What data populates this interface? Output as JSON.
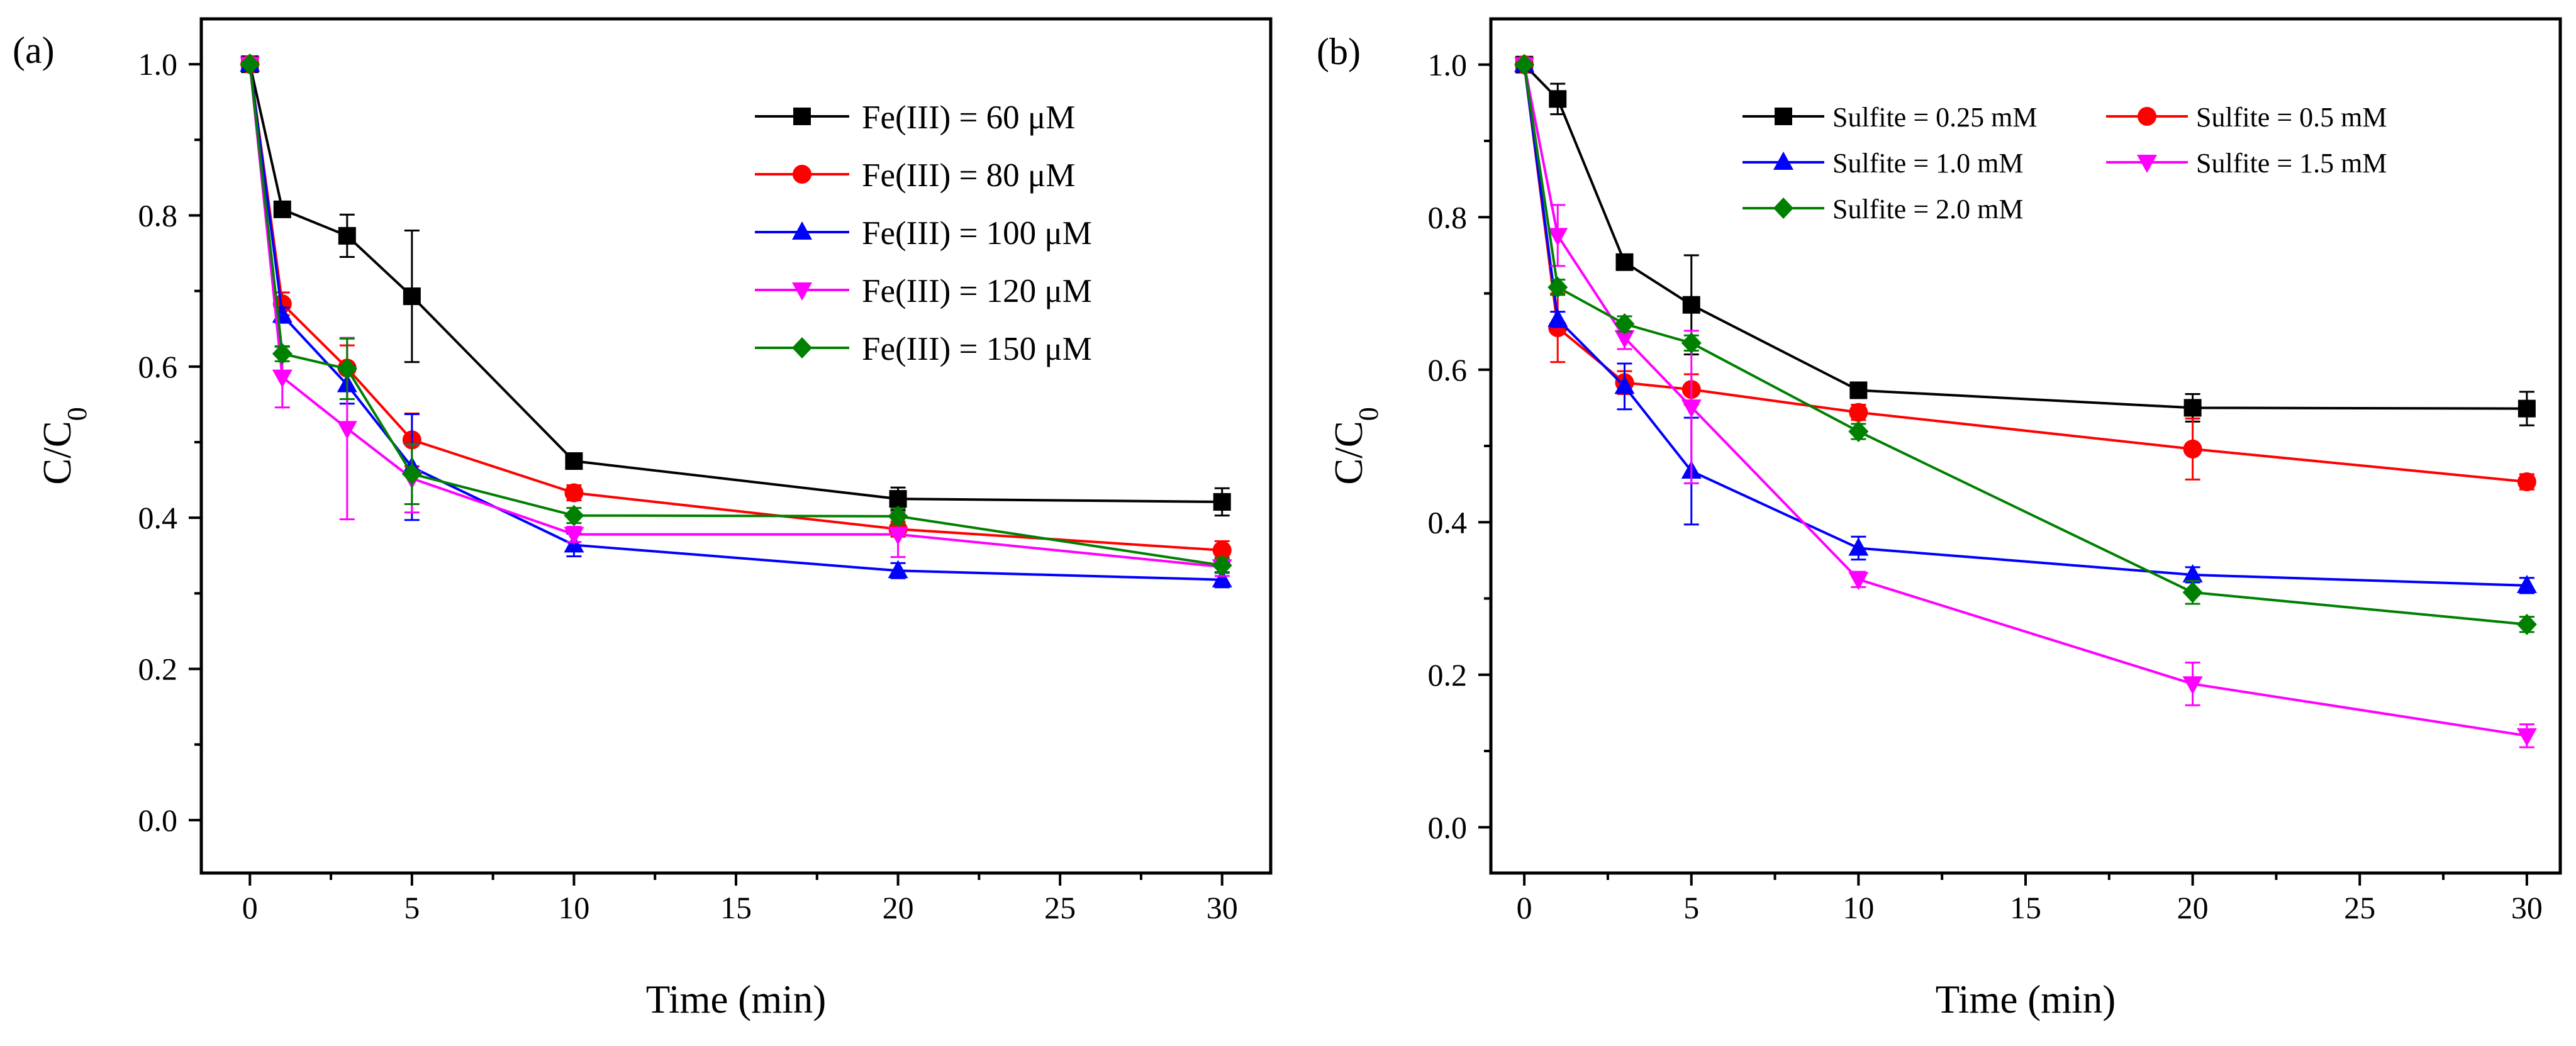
{
  "chart_data": [
    {
      "type": "line",
      "panel_label": "(a)",
      "xlabel": "Time (min)",
      "ylabel_main": "C/C",
      "ylabel_sub": "0",
      "xlim": [
        -1.5,
        31.5
      ],
      "ylim": [
        -0.07,
        1.06
      ],
      "xticks": [
        "0",
        "5",
        "10",
        "15",
        "20",
        "25",
        "30"
      ],
      "yticks": [
        "0.0",
        "0.2",
        "0.4",
        "0.6",
        "0.8",
        "1.0"
      ],
      "legend_position": "top-right",
      "x": [
        0,
        1,
        3,
        5,
        10,
        20,
        30
      ],
      "series": [
        {
          "name": "Fe(III) = 60 μM",
          "color": "#000000",
          "marker": "square",
          "values": [
            1.0,
            0.808,
            0.773,
            0.693,
            0.475,
            0.425,
            0.421
          ],
          "errors": [
            0,
            0.008,
            0.028,
            0.087,
            0.01,
            0.015,
            0.018
          ]
        },
        {
          "name": "Fe(III) = 80 μM",
          "color": "#ff0000",
          "marker": "circle",
          "values": [
            1.0,
            0.683,
            0.598,
            0.503,
            0.433,
            0.385,
            0.357
          ],
          "errors": [
            0,
            0.015,
            0.03,
            0.035,
            0.01,
            0.01,
            0.012
          ]
        },
        {
          "name": "Fe(III) = 100 μM",
          "color": "#0000ff",
          "marker": "triangle-up",
          "values": [
            1.0,
            0.668,
            0.576,
            0.467,
            0.364,
            0.33,
            0.318
          ],
          "errors": [
            0,
            0.01,
            0.025,
            0.07,
            0.015,
            0.01,
            0.01
          ]
        },
        {
          "name": "Fe(III) = 120 μM",
          "color": "#ff00ff",
          "marker": "triangle-down",
          "values": [
            1.0,
            0.586,
            0.518,
            0.452,
            0.378,
            0.378,
            0.335
          ],
          "errors": [
            0,
            0.04,
            0.12,
            0.045,
            0.01,
            0.03,
            0.012
          ]
        },
        {
          "name": "Fe(III) = 150 μM",
          "color": "#008000",
          "marker": "diamond",
          "values": [
            1.0,
            0.617,
            0.597,
            0.458,
            0.403,
            0.402,
            0.337
          ],
          "errors": [
            0,
            0.01,
            0.04,
            0.04,
            0.01,
            0.01,
            0.01
          ]
        }
      ]
    },
    {
      "type": "line",
      "panel_label": "(b)",
      "xlabel": "Time (min)",
      "ylabel_main": "C/C",
      "ylabel_sub": "0",
      "xlim": [
        -1.0,
        31.0
      ],
      "ylim": [
        -0.06,
        1.06
      ],
      "xticks": [
        "0",
        "5",
        "10",
        "15",
        "20",
        "25",
        "30"
      ],
      "yticks": [
        "0.0",
        "0.2",
        "0.4",
        "0.6",
        "0.8",
        "1.0"
      ],
      "legend_position": "top-right",
      "x": [
        0,
        1,
        3,
        5,
        10,
        20,
        30
      ],
      "series": [
        {
          "name": "Sulfite = 0.25 mM",
          "color": "#000000",
          "marker": "square",
          "values": [
            1.0,
            0.955,
            0.741,
            0.685,
            0.573,
            0.55,
            0.549
          ],
          "errors": [
            0,
            0.02,
            0.01,
            0.065,
            0.01,
            0.018,
            0.022
          ]
        },
        {
          "name": "Sulfite = 0.5 mM",
          "color": "#ff0000",
          "marker": "circle",
          "values": [
            1.0,
            0.655,
            0.583,
            0.574,
            0.544,
            0.496,
            0.453
          ],
          "errors": [
            0,
            0.045,
            0.015,
            0.02,
            0.01,
            0.04,
            0.01
          ]
        },
        {
          "name": "Sulfite = 1.0 mM",
          "color": "#0000ff",
          "marker": "triangle-up",
          "values": [
            1.0,
            0.666,
            0.578,
            0.467,
            0.366,
            0.331,
            0.317
          ],
          "errors": [
            0,
            0.01,
            0.03,
            0.07,
            0.015,
            0.01,
            0.01
          ]
        },
        {
          "name": "Sulfite = 1.5 mM",
          "color": "#ff00ff",
          "marker": "triangle-down",
          "values": [
            1.0,
            0.776,
            0.642,
            0.551,
            0.325,
            0.188,
            0.12
          ],
          "errors": [
            0,
            0.04,
            0.015,
            0.1,
            0.01,
            0.028,
            0.015
          ]
        },
        {
          "name": "Sulfite = 2.0 mM",
          "color": "#008000",
          "marker": "diamond",
          "values": [
            1.0,
            0.708,
            0.66,
            0.635,
            0.519,
            0.308,
            0.266
          ],
          "errors": [
            0,
            0.01,
            0.01,
            0.01,
            0.01,
            0.015,
            0.01
          ]
        }
      ]
    }
  ]
}
